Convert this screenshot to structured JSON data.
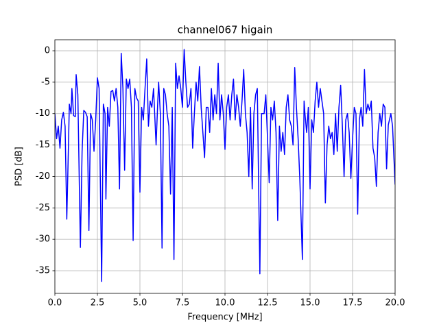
{
  "chart_data": {
    "type": "line",
    "title": "channel067 higain",
    "xlabel": "Frequency [MHz]",
    "ylabel": "PSD [dB]",
    "color": "#0000ff",
    "grid": true,
    "xlim": [
      0,
      20
    ],
    "ylim": [
      -38.6,
      1.75
    ],
    "xticks": [
      {
        "value": 0,
        "label": "0.0"
      },
      2.5,
      {
        "value": 5,
        "label": "5.0"
      },
      7.5,
      {
        "value": 10,
        "label": "10.0"
      },
      12.5,
      {
        "value": 15,
        "label": "15.0"
      },
      17.5,
      {
        "value": 20,
        "label": "20.0"
      }
    ],
    "yticks": [
      -35,
      -30,
      -25,
      -20,
      -15,
      -10,
      -5,
      0
    ],
    "x": [
      0,
      0.1,
      0.2,
      0.3,
      0.4,
      0.5,
      0.6,
      0.7,
      0.8,
      0.85,
      0.95,
      1.0,
      1.1,
      1.2,
      1.25,
      1.35,
      1.5,
      1.6,
      1.7,
      1.8,
      1.9,
      2.0,
      2.1,
      2.2,
      2.3,
      2.4,
      2.5,
      2.6,
      2.75,
      2.85,
      2.95,
      3.0,
      3.1,
      3.2,
      3.3,
      3.4,
      3.5,
      3.6,
      3.7,
      3.8,
      3.9,
      4.0,
      4.1,
      4.2,
      4.3,
      4.4,
      4.5,
      4.6,
      4.7,
      4.8,
      4.9,
      5.0,
      5.1,
      5.2,
      5.3,
      5.4,
      5.5,
      5.6,
      5.7,
      5.8,
      5.95,
      6.05,
      6.1,
      6.2,
      6.3,
      6.4,
      6.5,
      6.6,
      6.7,
      6.8,
      6.9,
      7.0,
      7.1,
      7.2,
      7.3,
      7.4,
      7.5,
      7.6,
      7.7,
      7.8,
      7.9,
      8.0,
      8.1,
      8.2,
      8.3,
      8.4,
      8.5,
      8.6,
      8.7,
      8.8,
      8.9,
      9.0,
      9.1,
      9.2,
      9.3,
      9.4,
      9.5,
      9.6,
      9.7,
      9.8,
      9.9,
      10.0,
      10.1,
      10.2,
      10.3,
      10.4,
      10.5,
      10.6,
      10.7,
      10.8,
      10.9,
      11.0,
      11.1,
      11.2,
      11.3,
      11.4,
      11.5,
      11.6,
      11.7,
      11.8,
      11.9,
      12.05,
      12.15,
      12.3,
      12.4,
      12.5,
      12.6,
      12.7,
      12.8,
      12.9,
      13.0,
      13.1,
      13.2,
      13.3,
      13.4,
      13.5,
      13.6,
      13.7,
      13.8,
      13.9,
      14.0,
      14.1,
      14.2,
      14.3,
      14.4,
      14.55,
      14.65,
      14.7,
      14.8,
      14.9,
      15.0,
      15.1,
      15.2,
      15.3,
      15.4,
      15.5,
      15.6,
      15.7,
      15.8,
      15.9,
      16.0,
      16.1,
      16.2,
      16.3,
      16.4,
      16.5,
      16.6,
      16.7,
      16.8,
      16.9,
      17.0,
      17.1,
      17.2,
      17.3,
      17.4,
      17.5,
      17.6,
      17.7,
      17.8,
      17.9,
      18.0,
      18.1,
      18.2,
      18.3,
      18.4,
      18.5,
      18.6,
      18.7,
      18.8,
      18.9,
      19.0,
      19.1,
      19.2,
      19.3,
      19.4,
      19.5,
      19.6,
      19.75,
      19.85,
      20.0
    ],
    "values": [
      -10,
      -14,
      -12,
      -15.5,
      -11,
      -9.8,
      -12,
      -26.8,
      -15,
      -8.5,
      -10,
      -6,
      -10.3,
      -10.5,
      -3.8,
      -7,
      -31.3,
      -16,
      -9.5,
      -9.8,
      -10.5,
      -28.6,
      -10,
      -11,
      -16,
      -11,
      -4.3,
      -6,
      -36.7,
      -8.5,
      -10,
      -23.6,
      -9,
      -12,
      -6.5,
      -6.3,
      -8,
      -6,
      -9,
      -22,
      -0.4,
      -6,
      -19,
      -4.5,
      -6,
      -4.5,
      -9,
      -30.2,
      -6,
      -7.5,
      -8,
      -22.5,
      -9,
      -11,
      -6,
      -1.3,
      -12,
      -8,
      -9,
      -6,
      -15,
      -8,
      -5,
      -10,
      -31.4,
      -6,
      -7,
      -10,
      -12,
      -22.8,
      -9,
      -33.2,
      -2,
      -6,
      -4,
      -6,
      -9,
      0.2,
      -5,
      -9,
      -8.5,
      -6,
      -15.5,
      -10,
      -5,
      -8,
      -2.5,
      -9,
      -13,
      -17,
      -9,
      -9,
      -13,
      -6,
      -11,
      -7,
      -10,
      -2,
      -11,
      -7,
      -10,
      -15.7,
      -9,
      -7,
      -11,
      -7,
      -4.5,
      -11,
      -7,
      -9,
      -12,
      -8,
      -3,
      -10,
      -13,
      -20,
      -9,
      -22,
      -10,
      -7,
      -6,
      -35.5,
      -10,
      -10,
      -7,
      -14,
      -21,
      -9,
      -11,
      -8,
      -13,
      -27,
      -12,
      -16,
      -13,
      -16.5,
      -9,
      -7,
      -11,
      -12,
      -15,
      -2.7,
      -9,
      -14,
      -20.5,
      -33.2,
      -8,
      -10,
      -13,
      -9,
      -22,
      -11,
      -13,
      -8,
      -5,
      -9,
      -6,
      -8,
      -10,
      -24.2,
      -15,
      -12,
      -14,
      -13,
      -16.5,
      -10,
      -16,
      -9,
      -5.5,
      -12,
      -20,
      -11,
      -10,
      -13,
      -20.3,
      -14,
      -9,
      -10,
      -26,
      -11,
      -9,
      -12,
      -3,
      -10,
      -8.5,
      -9.5,
      -8,
      -15.5,
      -17,
      -21.6,
      -13,
      -10,
      -12,
      -8.5,
      -9,
      -18.8,
      -11.8,
      -10,
      -12,
      -21.3
    ]
  }
}
